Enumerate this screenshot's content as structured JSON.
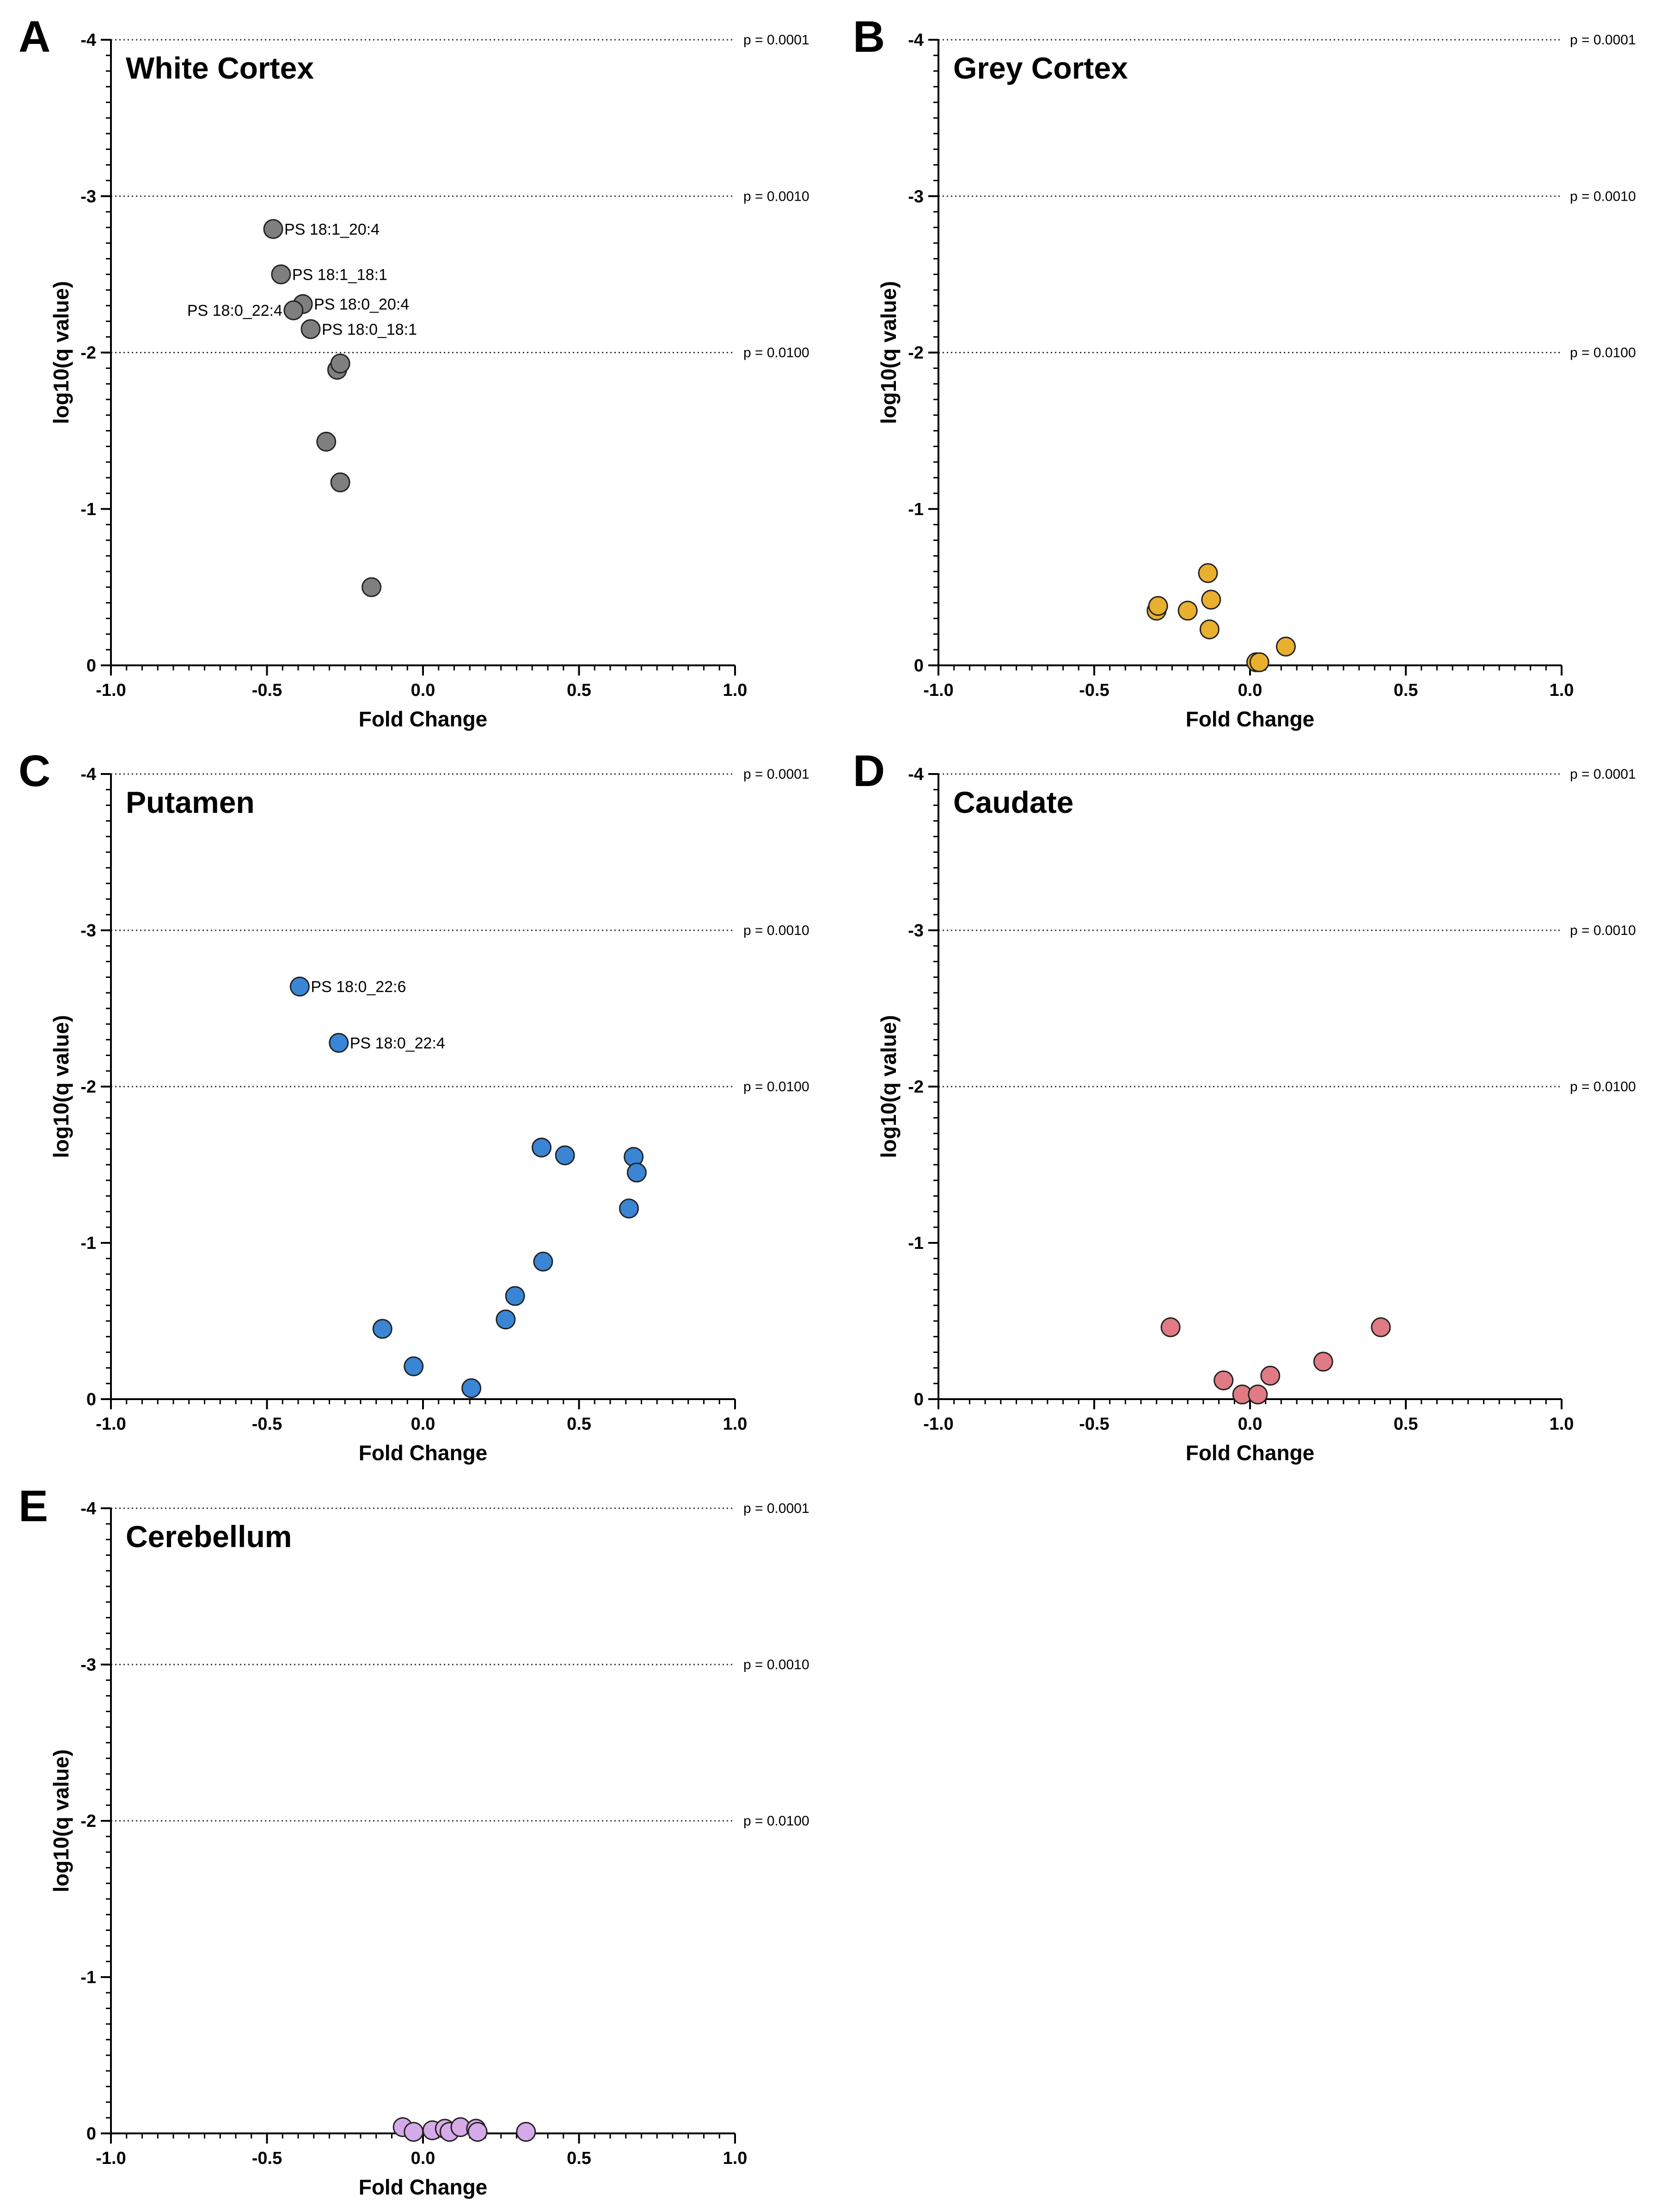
{
  "chart_data": [
    {
      "panel": "A",
      "title": "White Cortex",
      "type": "scatter",
      "xlabel": "Fold Change",
      "ylabel": "log10(q value)",
      "xlim": [
        -1.0,
        1.0
      ],
      "ylim": [
        0,
        -4
      ],
      "xticks": [
        "-1.0",
        "-0.5",
        "0.0",
        "0.5",
        "1.0"
      ],
      "yticks": [
        "-4",
        "-3",
        "-2",
        "-1",
        "0"
      ],
      "reference_lines": [
        {
          "y": -4,
          "label": "p = 0.0001"
        },
        {
          "y": -3,
          "label": "p = 0.0010"
        },
        {
          "y": -2,
          "label": "p = 0.0100"
        }
      ],
      "color": "#7f7f7f",
      "points": [
        {
          "x": -0.48,
          "y": -2.79,
          "label": "PS 18:1_20:4",
          "label_side": "right"
        },
        {
          "x": -0.455,
          "y": -2.5,
          "label": "PS 18:1_18:1",
          "label_side": "right"
        },
        {
          "x": -0.385,
          "y": -2.31,
          "label": "PS 18:0_20:4",
          "label_side": "right"
        },
        {
          "x": -0.415,
          "y": -2.27,
          "label": "PS 18:0_22:4",
          "label_side": "left"
        },
        {
          "x": -0.36,
          "y": -2.15,
          "label": "PS 18:0_18:1",
          "label_side": "right"
        },
        {
          "x": -0.275,
          "y": -1.89
        },
        {
          "x": -0.265,
          "y": -1.93
        },
        {
          "x": -0.31,
          "y": -1.43
        },
        {
          "x": -0.265,
          "y": -1.17
        },
        {
          "x": -0.165,
          "y": -0.5
        }
      ]
    },
    {
      "panel": "B",
      "title": "Grey Cortex",
      "type": "scatter",
      "xlabel": "Fold Change",
      "ylabel": "log10(q value)",
      "xlim": [
        -1.0,
        1.0
      ],
      "ylim": [
        0,
        -4
      ],
      "xticks": [
        "-1.0",
        "-0.5",
        "0.0",
        "0.5",
        "1.0"
      ],
      "yticks": [
        "-4",
        "-3",
        "-2",
        "-1",
        "0"
      ],
      "reference_lines": [
        {
          "y": -4,
          "label": "p = 0.0001"
        },
        {
          "y": -3,
          "label": "p = 0.0010"
        },
        {
          "y": -2,
          "label": "p = 0.0100"
        }
      ],
      "color": "#e8b02e",
      "points": [
        {
          "x": -0.135,
          "y": -0.59
        },
        {
          "x": -0.125,
          "y": -0.42
        },
        {
          "x": -0.3,
          "y": -0.35
        },
        {
          "x": -0.295,
          "y": -0.38
        },
        {
          "x": -0.2,
          "y": -0.35
        },
        {
          "x": -0.13,
          "y": -0.23
        },
        {
          "x": 0.115,
          "y": -0.12
        },
        {
          "x": 0.02,
          "y": -0.02
        },
        {
          "x": 0.03,
          "y": -0.02
        }
      ]
    },
    {
      "panel": "C",
      "title": "Putamen",
      "type": "scatter",
      "xlabel": "Fold Change",
      "ylabel": "log10(q value)",
      "xlim": [
        -1.0,
        1.0
      ],
      "ylim": [
        0,
        -4
      ],
      "xticks": [
        "-1.0",
        "-0.5",
        "0.0",
        "0.5",
        "1.0"
      ],
      "yticks": [
        "-4",
        "-3",
        "-2",
        "-1",
        "0"
      ],
      "reference_lines": [
        {
          "y": -4,
          "label": "p = 0.0001"
        },
        {
          "y": -3,
          "label": "p = 0.0010"
        },
        {
          "y": -2,
          "label": "p = 0.0100"
        }
      ],
      "color": "#3a85d4",
      "points": [
        {
          "x": -0.395,
          "y": -2.64,
          "label": "PS 18:0_22:6",
          "label_side": "right"
        },
        {
          "x": -0.27,
          "y": -2.28,
          "label": "PS 18:0_22:4",
          "label_side": "right"
        },
        {
          "x": 0.38,
          "y": -1.61
        },
        {
          "x": 0.455,
          "y": -1.56
        },
        {
          "x": 0.675,
          "y": -1.55
        },
        {
          "x": 0.685,
          "y": -1.45
        },
        {
          "x": 0.66,
          "y": -1.22
        },
        {
          "x": 0.385,
          "y": -0.88
        },
        {
          "x": 0.295,
          "y": -0.66
        },
        {
          "x": 0.265,
          "y": -0.51
        },
        {
          "x": -0.13,
          "y": -0.45
        },
        {
          "x": -0.03,
          "y": -0.21
        },
        {
          "x": 0.155,
          "y": -0.07
        }
      ]
    },
    {
      "panel": "D",
      "title": "Caudate",
      "type": "scatter",
      "xlabel": "Fold Change",
      "ylabel": "log10(q value)",
      "xlim": [
        -1.0,
        1.0
      ],
      "ylim": [
        0,
        -4
      ],
      "xticks": [
        "-1.0",
        "-0.5",
        "0.0",
        "0.5",
        "1.0"
      ],
      "yticks": [
        "-4",
        "-3",
        "-2",
        "-1",
        "0"
      ],
      "reference_lines": [
        {
          "y": -4,
          "label": "p = 0.0001"
        },
        {
          "y": -3,
          "label": "p = 0.0010"
        },
        {
          "y": -2,
          "label": "p = 0.0100"
        }
      ],
      "color": "#e07b86",
      "points": [
        {
          "x": -0.255,
          "y": -0.46
        },
        {
          "x": 0.42,
          "y": -0.46
        },
        {
          "x": 0.235,
          "y": -0.24
        },
        {
          "x": 0.065,
          "y": -0.15
        },
        {
          "x": -0.085,
          "y": -0.12
        },
        {
          "x": -0.025,
          "y": -0.03
        },
        {
          "x": 0.025,
          "y": -0.03
        }
      ]
    },
    {
      "panel": "E",
      "title": "Cerebellum",
      "type": "scatter",
      "xlabel": "Fold Change",
      "ylabel": "log10(q value)",
      "xlim": [
        -1.0,
        1.0
      ],
      "ylim": [
        0,
        -4
      ],
      "xticks": [
        "-1.0",
        "-0.5",
        "0.0",
        "0.5",
        "1.0"
      ],
      "yticks": [
        "-4",
        "-3",
        "-2",
        "-1",
        "0"
      ],
      "reference_lines": [
        {
          "y": -4,
          "label": "p = 0.0001"
        },
        {
          "y": -3,
          "label": "p = 0.0010"
        },
        {
          "y": -2,
          "label": "p = 0.0100"
        }
      ],
      "color": "#d6a9e8",
      "points": [
        {
          "x": -0.065,
          "y": -0.04
        },
        {
          "x": -0.03,
          "y": -0.01
        },
        {
          "x": 0.03,
          "y": -0.02
        },
        {
          "x": 0.07,
          "y": -0.03
        },
        {
          "x": 0.085,
          "y": -0.01
        },
        {
          "x": 0.12,
          "y": -0.04
        },
        {
          "x": 0.17,
          "y": -0.03
        },
        {
          "x": 0.175,
          "y": -0.01
        },
        {
          "x": 0.33,
          "y": -0.01
        }
      ]
    }
  ]
}
